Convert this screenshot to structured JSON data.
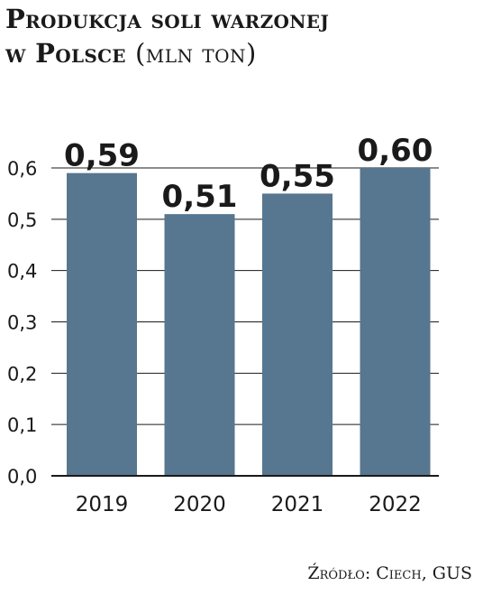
{
  "title": {
    "line1": "Produkcja soli warzonej",
    "line2_bold": "w Polsce",
    "line2_unit": "(mln ton)"
  },
  "source": "Źródło: Ciech, GUS",
  "colors": {
    "bar": "#57768f",
    "grid": "#1a1a1a",
    "text": "#1a1a1a"
  },
  "chart_data": {
    "type": "bar",
    "categories": [
      "2019",
      "2020",
      "2021",
      "2022"
    ],
    "values": [
      0.59,
      0.51,
      0.55,
      0.6
    ],
    "value_labels": [
      "0,59",
      "0,51",
      "0,55",
      "0,60"
    ],
    "yticks": [
      0.0,
      0.1,
      0.2,
      0.3,
      0.4,
      0.5,
      0.6
    ],
    "ytick_labels": [
      "0,0",
      "0,1",
      "0,2",
      "0,3",
      "0,4",
      "0,5",
      "0,6"
    ],
    "ylim": [
      0,
      0.6
    ],
    "grid": true,
    "legend": "none"
  }
}
